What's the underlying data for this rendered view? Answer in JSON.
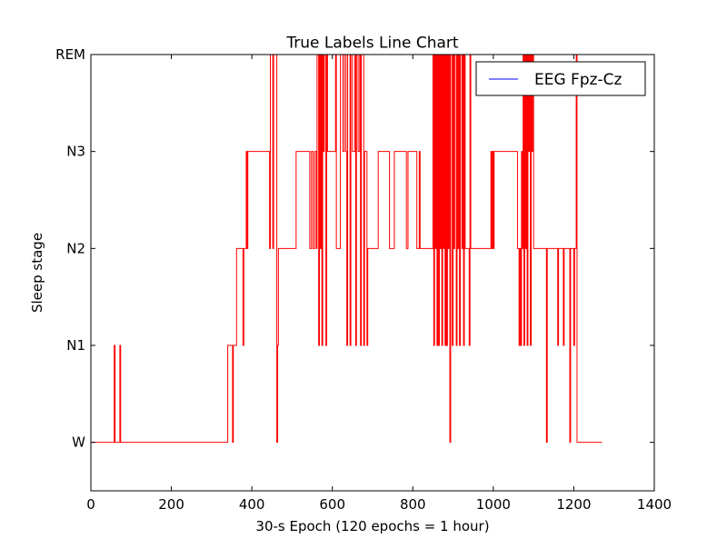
{
  "chart_data": {
    "type": "line",
    "title": "True Labels Line Chart",
    "xlabel": "30-s Epoch (120 epochs = 1 hour)",
    "ylabel": "Sleep stage",
    "xlim": [
      0,
      1400
    ],
    "ylim": [
      -0.5,
      4.0
    ],
    "xticks": [
      0,
      200,
      400,
      600,
      800,
      1000,
      1200,
      1400
    ],
    "xtick_labels": [
      "0",
      "200",
      "400",
      "600",
      "800",
      "1000",
      "1200",
      "1400"
    ],
    "yticks": [
      0,
      1,
      2,
      3,
      4
    ],
    "ytick_labels": [
      "W",
      "N1",
      "N2",
      "N3",
      "REM"
    ],
    "grid": false,
    "legend": {
      "placement": "top-right",
      "entries": [
        {
          "label": "EEG Fpz-Cz",
          "color": "#0000ff"
        }
      ]
    },
    "series": [
      {
        "color": "#ff0000",
        "points": [
          [
            0,
            0
          ],
          [
            58,
            0
          ],
          [
            58,
            1
          ],
          [
            60,
            1
          ],
          [
            60,
            0
          ],
          [
            72,
            0
          ],
          [
            72,
            1
          ],
          [
            74,
            1
          ],
          [
            74,
            0
          ],
          [
            100,
            0
          ],
          [
            340,
            0
          ],
          [
            340,
            1
          ],
          [
            352,
            1
          ],
          [
            352,
            0
          ],
          [
            354,
            0
          ],
          [
            354,
            1
          ],
          [
            362,
            1
          ],
          [
            362,
            2
          ],
          [
            378,
            2
          ],
          [
            378,
            1
          ],
          [
            380,
            1
          ],
          [
            380,
            2
          ],
          [
            386,
            2
          ],
          [
            386,
            3
          ],
          [
            388,
            3
          ],
          [
            388,
            2
          ],
          [
            390,
            2
          ],
          [
            390,
            3
          ],
          [
            444,
            3
          ],
          [
            444,
            2
          ],
          [
            446,
            2
          ],
          [
            446,
            4
          ],
          [
            452,
            4
          ],
          [
            452,
            2
          ],
          [
            454,
            2
          ],
          [
            454,
            4
          ],
          [
            462,
            4
          ],
          [
            462,
            0
          ],
          [
            464,
            0
          ],
          [
            464,
            1
          ],
          [
            466,
            1
          ],
          [
            466,
            2
          ],
          [
            510,
            2
          ],
          [
            510,
            3
          ],
          [
            544,
            3
          ],
          [
            544,
            2
          ],
          [
            548,
            2
          ],
          [
            548,
            3
          ],
          [
            552,
            3
          ],
          [
            552,
            2
          ],
          [
            556,
            2
          ],
          [
            556,
            3
          ],
          [
            560,
            3
          ],
          [
            560,
            2
          ],
          [
            562,
            2
          ],
          [
            562,
            4
          ],
          [
            566,
            4
          ],
          [
            566,
            1
          ],
          [
            568,
            1
          ],
          [
            568,
            4
          ],
          [
            570,
            4
          ],
          [
            570,
            2
          ],
          [
            572,
            2
          ],
          [
            572,
            4
          ],
          [
            574,
            4
          ],
          [
            574,
            1
          ],
          [
            576,
            1
          ],
          [
            576,
            4
          ],
          [
            578,
            4
          ],
          [
            578,
            3
          ],
          [
            580,
            3
          ],
          [
            580,
            4
          ],
          [
            584,
            4
          ],
          [
            584,
            1
          ],
          [
            586,
            1
          ],
          [
            586,
            4
          ],
          [
            588,
            4
          ],
          [
            588,
            3
          ],
          [
            608,
            3
          ],
          [
            608,
            4
          ],
          [
            610,
            4
          ],
          [
            610,
            2
          ],
          [
            620,
            2
          ],
          [
            620,
            4
          ],
          [
            626,
            4
          ],
          [
            626,
            3
          ],
          [
            630,
            3
          ],
          [
            630,
            4
          ],
          [
            634,
            4
          ],
          [
            634,
            3
          ],
          [
            636,
            3
          ],
          [
            636,
            1
          ],
          [
            638,
            1
          ],
          [
            638,
            4
          ],
          [
            644,
            4
          ],
          [
            644,
            1
          ],
          [
            646,
            1
          ],
          [
            646,
            4
          ],
          [
            650,
            4
          ],
          [
            650,
            3
          ],
          [
            656,
            3
          ],
          [
            656,
            4
          ],
          [
            658,
            4
          ],
          [
            658,
            1
          ],
          [
            660,
            1
          ],
          [
            660,
            4
          ],
          [
            664,
            4
          ],
          [
            664,
            3
          ],
          [
            668,
            3
          ],
          [
            668,
            4
          ],
          [
            670,
            4
          ],
          [
            670,
            1
          ],
          [
            672,
            1
          ],
          [
            672,
            4
          ],
          [
            678,
            4
          ],
          [
            678,
            1
          ],
          [
            680,
            1
          ],
          [
            680,
            3
          ],
          [
            686,
            3
          ],
          [
            686,
            1
          ],
          [
            688,
            1
          ],
          [
            688,
            2
          ],
          [
            714,
            2
          ],
          [
            714,
            3
          ],
          [
            742,
            3
          ],
          [
            742,
            2
          ],
          [
            754,
            2
          ],
          [
            754,
            3
          ],
          [
            784,
            3
          ],
          [
            784,
            2
          ],
          [
            788,
            2
          ],
          [
            788,
            3
          ],
          [
            810,
            3
          ],
          [
            810,
            2
          ],
          [
            816,
            2
          ],
          [
            816,
            3
          ],
          [
            818,
            3
          ],
          [
            818,
            2
          ],
          [
            850,
            2
          ],
          [
            850,
            4
          ],
          [
            852,
            4
          ],
          [
            852,
            1
          ],
          [
            854,
            1
          ],
          [
            854,
            4
          ],
          [
            856,
            4
          ],
          [
            856,
            2
          ],
          [
            858,
            2
          ],
          [
            858,
            4
          ],
          [
            860,
            4
          ],
          [
            860,
            1
          ],
          [
            862,
            1
          ],
          [
            862,
            4
          ],
          [
            864,
            4
          ],
          [
            864,
            1
          ],
          [
            866,
            1
          ],
          [
            866,
            4
          ],
          [
            868,
            4
          ],
          [
            868,
            2
          ],
          [
            870,
            2
          ],
          [
            870,
            4
          ],
          [
            872,
            4
          ],
          [
            872,
            1
          ],
          [
            874,
            1
          ],
          [
            874,
            4
          ],
          [
            876,
            4
          ],
          [
            876,
            2
          ],
          [
            878,
            2
          ],
          [
            878,
            4
          ],
          [
            880,
            4
          ],
          [
            880,
            1
          ],
          [
            882,
            1
          ],
          [
            882,
            4
          ],
          [
            884,
            4
          ],
          [
            884,
            1
          ],
          [
            886,
            1
          ],
          [
            886,
            4
          ],
          [
            888,
            4
          ],
          [
            888,
            2
          ],
          [
            890,
            2
          ],
          [
            890,
            4
          ],
          [
            892,
            4
          ],
          [
            892,
            0
          ],
          [
            894,
            0
          ],
          [
            894,
            4
          ],
          [
            898,
            4
          ],
          [
            898,
            1
          ],
          [
            900,
            1
          ],
          [
            900,
            4
          ],
          [
            902,
            4
          ],
          [
            902,
            2
          ],
          [
            904,
            2
          ],
          [
            904,
            4
          ],
          [
            908,
            4
          ],
          [
            908,
            1
          ],
          [
            910,
            1
          ],
          [
            910,
            4
          ],
          [
            912,
            4
          ],
          [
            912,
            2
          ],
          [
            914,
            2
          ],
          [
            914,
            4
          ],
          [
            916,
            4
          ],
          [
            916,
            1
          ],
          [
            918,
            1
          ],
          [
            918,
            4
          ],
          [
            922,
            4
          ],
          [
            922,
            2
          ],
          [
            924,
            2
          ],
          [
            924,
            4
          ],
          [
            926,
            4
          ],
          [
            926,
            1
          ],
          [
            928,
            1
          ],
          [
            928,
            4
          ],
          [
            930,
            4
          ],
          [
            930,
            2
          ],
          [
            940,
            2
          ],
          [
            940,
            1
          ],
          [
            942,
            1
          ],
          [
            942,
            4
          ],
          [
            944,
            4
          ],
          [
            944,
            2
          ],
          [
            994,
            2
          ],
          [
            994,
            3
          ],
          [
            996,
            3
          ],
          [
            996,
            2
          ],
          [
            998,
            2
          ],
          [
            998,
            3
          ],
          [
            1000,
            3
          ],
          [
            1000,
            2
          ],
          [
            1002,
            2
          ],
          [
            1002,
            3
          ],
          [
            1060,
            3
          ],
          [
            1060,
            2
          ],
          [
            1064,
            2
          ],
          [
            1064,
            1
          ],
          [
            1066,
            1
          ],
          [
            1066,
            2
          ],
          [
            1068,
            2
          ],
          [
            1068,
            1
          ],
          [
            1070,
            1
          ],
          [
            1070,
            3
          ],
          [
            1072,
            3
          ],
          [
            1072,
            2
          ],
          [
            1074,
            2
          ],
          [
            1074,
            4
          ],
          [
            1076,
            4
          ],
          [
            1076,
            1
          ],
          [
            1078,
            1
          ],
          [
            1078,
            4
          ],
          [
            1080,
            4
          ],
          [
            1080,
            2
          ],
          [
            1082,
            2
          ],
          [
            1082,
            4
          ],
          [
            1084,
            4
          ],
          [
            1084,
            1
          ],
          [
            1086,
            1
          ],
          [
            1086,
            4
          ],
          [
            1088,
            4
          ],
          [
            1088,
            3
          ],
          [
            1090,
            3
          ],
          [
            1090,
            4
          ],
          [
            1092,
            4
          ],
          [
            1092,
            1
          ],
          [
            1094,
            1
          ],
          [
            1094,
            4
          ],
          [
            1096,
            4
          ],
          [
            1096,
            3
          ],
          [
            1098,
            3
          ],
          [
            1098,
            4
          ],
          [
            1100,
            4
          ],
          [
            1100,
            2
          ],
          [
            1132,
            2
          ],
          [
            1132,
            0
          ],
          [
            1134,
            0
          ],
          [
            1134,
            2
          ],
          [
            1160,
            2
          ],
          [
            1160,
            1
          ],
          [
            1162,
            1
          ],
          [
            1162,
            2
          ],
          [
            1174,
            2
          ],
          [
            1174,
            1
          ],
          [
            1176,
            1
          ],
          [
            1176,
            2
          ],
          [
            1190,
            2
          ],
          [
            1190,
            0
          ],
          [
            1192,
            0
          ],
          [
            1192,
            2
          ],
          [
            1200,
            2
          ],
          [
            1200,
            1
          ],
          [
            1202,
            1
          ],
          [
            1202,
            2
          ],
          [
            1206,
            2
          ],
          [
            1206,
            4
          ],
          [
            1208,
            4
          ],
          [
            1208,
            0
          ],
          [
            1270,
            0
          ]
        ]
      }
    ]
  }
}
